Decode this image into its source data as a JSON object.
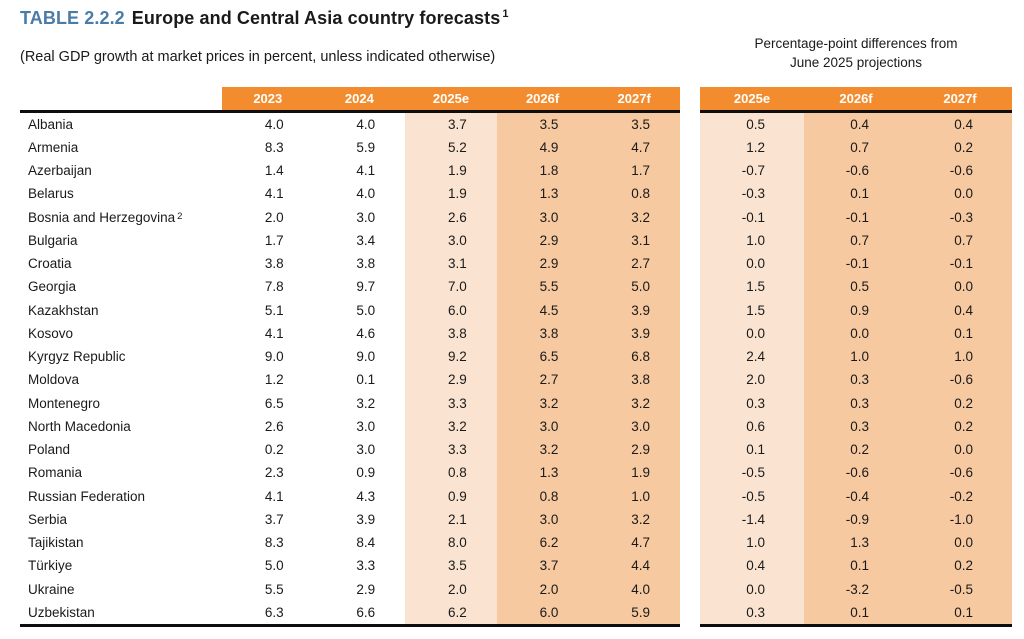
{
  "title": {
    "table_label": "TABLE 2.2.2",
    "title_text": "Europe and Central Asia country forecasts",
    "title_footnote": "1"
  },
  "subtitle": "(Real GDP growth at market prices in percent, unless indicated otherwise)",
  "diff_caption": {
    "line1": "Percentage-point differences from",
    "line2": "June 2025 projections"
  },
  "columns_main": [
    "2023",
    "2024",
    "2025e",
    "2026f",
    "2027f"
  ],
  "columns_diff": [
    "2025e",
    "2026f",
    "2027f"
  ],
  "colors": {
    "header_orange": "#F28C2E",
    "shade_light": "#FAE4D1",
    "shade_mid": "#F6C9A0",
    "title_blue": "#4A7CA8",
    "text": "#1a1a1a"
  },
  "chart_data": {
    "type": "table",
    "title": "TABLE 2.2.2 Europe and Central Asia country forecasts",
    "subtitle": "(Real GDP growth at market prices in percent, unless indicated otherwise)",
    "main_columns": [
      "2023",
      "2024",
      "2025e",
      "2026f",
      "2027f"
    ],
    "diff_columns_caption": "Percentage-point differences from June 2025 projections",
    "diff_columns": [
      "2025e",
      "2026f",
      "2027f"
    ]
  },
  "rows": [
    {
      "country": "Albania",
      "sup": "",
      "values": [
        "4.0",
        "4.0",
        "3.7",
        "3.5",
        "3.5"
      ],
      "diffs": [
        "0.5",
        "0.4",
        "0.4"
      ]
    },
    {
      "country": "Armenia",
      "sup": "",
      "values": [
        "8.3",
        "5.9",
        "5.2",
        "4.9",
        "4.7"
      ],
      "diffs": [
        "1.2",
        "0.7",
        "0.2"
      ]
    },
    {
      "country": "Azerbaijan",
      "sup": "",
      "values": [
        "1.4",
        "4.1",
        "1.9",
        "1.8",
        "1.7"
      ],
      "diffs": [
        "-0.7",
        "-0.6",
        "-0.6"
      ]
    },
    {
      "country": "Belarus",
      "sup": "",
      "values": [
        "4.1",
        "4.0",
        "1.9",
        "1.3",
        "0.8"
      ],
      "diffs": [
        "-0.3",
        "0.1",
        "0.0"
      ]
    },
    {
      "country": "Bosnia and Herzegovina",
      "sup": "2",
      "values": [
        "2.0",
        "3.0",
        "2.6",
        "3.0",
        "3.2"
      ],
      "diffs": [
        "-0.1",
        "-0.1",
        "-0.3"
      ]
    },
    {
      "country": "Bulgaria",
      "sup": "",
      "values": [
        "1.7",
        "3.4",
        "3.0",
        "2.9",
        "3.1"
      ],
      "diffs": [
        "1.0",
        "0.7",
        "0.7"
      ]
    },
    {
      "country": "Croatia",
      "sup": "",
      "values": [
        "3.8",
        "3.8",
        "3.1",
        "2.9",
        "2.7"
      ],
      "diffs": [
        "0.0",
        "-0.1",
        "-0.1"
      ]
    },
    {
      "country": "Georgia",
      "sup": "",
      "values": [
        "7.8",
        "9.7",
        "7.0",
        "5.5",
        "5.0"
      ],
      "diffs": [
        "1.5",
        "0.5",
        "0.0"
      ]
    },
    {
      "country": "Kazakhstan",
      "sup": "",
      "values": [
        "5.1",
        "5.0",
        "6.0",
        "4.5",
        "3.9"
      ],
      "diffs": [
        "1.5",
        "0.9",
        "0.4"
      ]
    },
    {
      "country": "Kosovo",
      "sup": "",
      "values": [
        "4.1",
        "4.6",
        "3.8",
        "3.8",
        "3.9"
      ],
      "diffs": [
        "0.0",
        "0.0",
        "0.1"
      ]
    },
    {
      "country": "Kyrgyz Republic",
      "sup": "",
      "values": [
        "9.0",
        "9.0",
        "9.2",
        "6.5",
        "6.8"
      ],
      "diffs": [
        "2.4",
        "1.0",
        "1.0"
      ]
    },
    {
      "country": "Moldova",
      "sup": "",
      "values": [
        "1.2",
        "0.1",
        "2.9",
        "2.7",
        "3.8"
      ],
      "diffs": [
        "2.0",
        "0.3",
        "-0.6"
      ]
    },
    {
      "country": "Montenegro",
      "sup": "",
      "values": [
        "6.5",
        "3.2",
        "3.3",
        "3.2",
        "3.2"
      ],
      "diffs": [
        "0.3",
        "0.3",
        "0.2"
      ]
    },
    {
      "country": "North Macedonia",
      "sup": "",
      "values": [
        "2.6",
        "3.0",
        "3.2",
        "3.0",
        "3.0"
      ],
      "diffs": [
        "0.6",
        "0.3",
        "0.2"
      ]
    },
    {
      "country": "Poland",
      "sup": "",
      "values": [
        "0.2",
        "3.0",
        "3.3",
        "3.2",
        "2.9"
      ],
      "diffs": [
        "0.1",
        "0.2",
        "0.0"
      ]
    },
    {
      "country": "Romania",
      "sup": "",
      "values": [
        "2.3",
        "0.9",
        "0.8",
        "1.3",
        "1.9"
      ],
      "diffs": [
        "-0.5",
        "-0.6",
        "-0.6"
      ]
    },
    {
      "country": "Russian Federation",
      "sup": "",
      "values": [
        "4.1",
        "4.3",
        "0.9",
        "0.8",
        "1.0"
      ],
      "diffs": [
        "-0.5",
        "-0.4",
        "-0.2"
      ]
    },
    {
      "country": "Serbia",
      "sup": "",
      "values": [
        "3.7",
        "3.9",
        "2.1",
        "3.0",
        "3.2"
      ],
      "diffs": [
        "-1.4",
        "-0.9",
        "-1.0"
      ]
    },
    {
      "country": "Tajikistan",
      "sup": "",
      "values": [
        "8.3",
        "8.4",
        "8.0",
        "6.2",
        "4.7"
      ],
      "diffs": [
        "1.0",
        "1.3",
        "0.0"
      ]
    },
    {
      "country": "Türkiye",
      "sup": "",
      "values": [
        "5.0",
        "3.3",
        "3.5",
        "3.7",
        "4.4"
      ],
      "diffs": [
        "0.4",
        "0.1",
        "0.2"
      ]
    },
    {
      "country": "Ukraine",
      "sup": "",
      "values": [
        "5.5",
        "2.9",
        "2.0",
        "2.0",
        "4.0"
      ],
      "diffs": [
        "0.0",
        "-3.2",
        "-0.5"
      ]
    },
    {
      "country": "Uzbekistan",
      "sup": "",
      "values": [
        "6.3",
        "6.6",
        "6.2",
        "6.0",
        "5.9"
      ],
      "diffs": [
        "0.3",
        "0.1",
        "0.1"
      ]
    }
  ]
}
